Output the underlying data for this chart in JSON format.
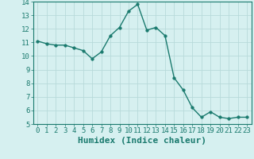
{
  "x": [
    0,
    1,
    2,
    3,
    4,
    5,
    6,
    7,
    8,
    9,
    10,
    11,
    12,
    13,
    14,
    15,
    16,
    17,
    18,
    19,
    20,
    21,
    22,
    23
  ],
  "y": [
    11.1,
    10.9,
    10.8,
    10.8,
    10.6,
    10.4,
    9.8,
    10.3,
    11.5,
    12.1,
    13.3,
    13.8,
    11.9,
    12.1,
    11.5,
    8.4,
    7.5,
    6.2,
    5.5,
    5.9,
    5.5,
    5.4,
    5.5,
    5.5
  ],
  "line_color": "#1a7a6e",
  "marker_color": "#1a7a6e",
  "bg_color": "#d6f0f0",
  "grid_color": "#b8dada",
  "xlabel": "Humidex (Indice chaleur)",
  "ylim": [
    5,
    14
  ],
  "xlim_min": -0.5,
  "xlim_max": 23.5,
  "yticks": [
    5,
    6,
    7,
    8,
    9,
    10,
    11,
    12,
    13,
    14
  ],
  "xticks": [
    0,
    1,
    2,
    3,
    4,
    5,
    6,
    7,
    8,
    9,
    10,
    11,
    12,
    13,
    14,
    15,
    16,
    17,
    18,
    19,
    20,
    21,
    22,
    23
  ],
  "tick_label_fontsize": 6.5,
  "xlabel_fontsize": 8,
  "marker_size": 2.5,
  "line_width": 1.0
}
